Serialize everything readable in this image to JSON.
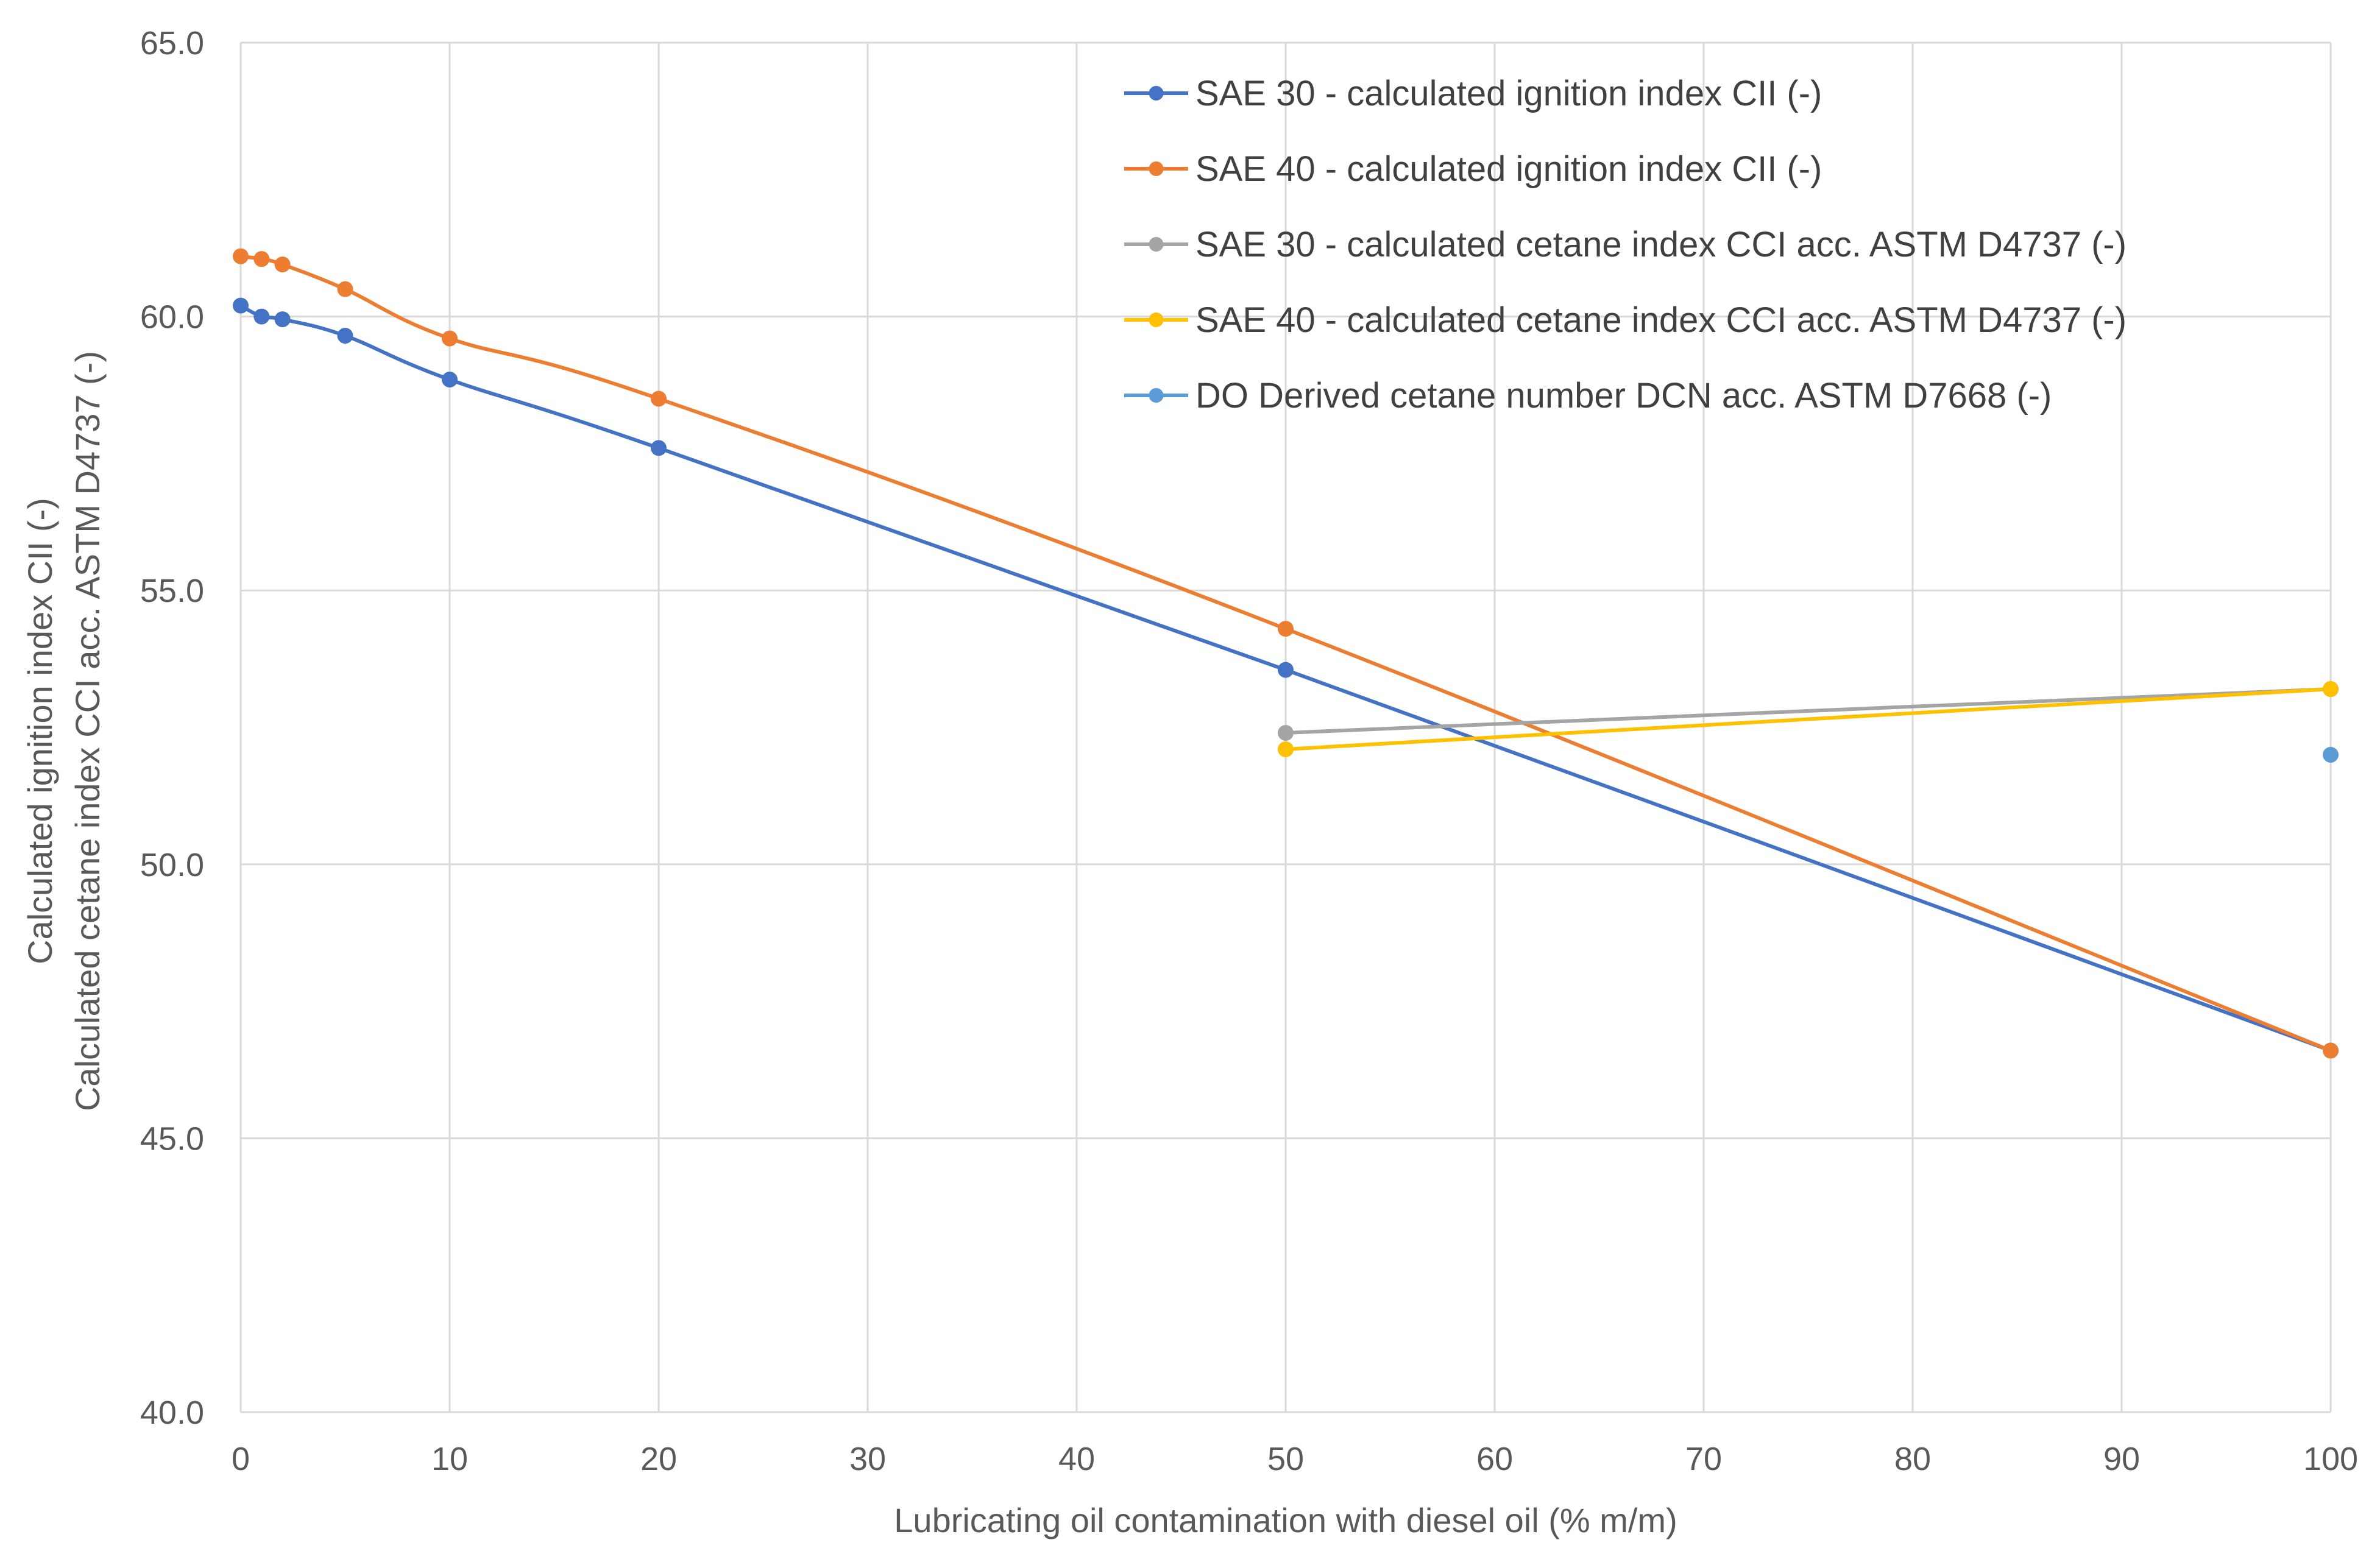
{
  "chart_data": {
    "type": "line",
    "title": "",
    "xlabel": "Lubricating oil contamination with diesel oil (% m/m)",
    "ylabel_lines": [
      "Calculated ignition index CII (-)",
      "Calculated cetane index CCI acc. ASTM D4737 (-)"
    ],
    "xlim": [
      0,
      100
    ],
    "ylim": [
      40,
      65
    ],
    "x_ticks": [
      "0",
      "10",
      "20",
      "30",
      "40",
      "50",
      "60",
      "70",
      "80",
      "90",
      "100"
    ],
    "x_tick_values": [
      0,
      10,
      20,
      30,
      40,
      50,
      60,
      70,
      80,
      90,
      100
    ],
    "y_ticks": [
      "40.0",
      "45.0",
      "50.0",
      "55.0",
      "60.0",
      "65.0"
    ],
    "y_tick_values": [
      40,
      45,
      50,
      55,
      60,
      65
    ],
    "grid": true,
    "legend_position": "top-right",
    "series": [
      {
        "name": "SAE 30 - calculated ignition index CII (-)",
        "color": "#4472C4",
        "x": [
          0,
          1,
          2,
          5,
          10,
          20,
          50,
          100
        ],
        "y": [
          60.2,
          60.0,
          59.95,
          59.65,
          58.85,
          57.6,
          53.55,
          46.6
        ]
      },
      {
        "name": "SAE 40 - calculated ignition index CII (-)",
        "color": "#ED7D31",
        "x": [
          0,
          1,
          2,
          5,
          10,
          20,
          50,
          100
        ],
        "y": [
          61.1,
          61.05,
          60.95,
          60.5,
          59.6,
          58.5,
          54.3,
          46.6
        ]
      },
      {
        "name": "SAE 30 - calculated cetane index CCI acc. ASTM D4737 (-)",
        "color": "#A5A5A5",
        "x": [
          50,
          100
        ],
        "y": [
          52.4,
          53.2
        ]
      },
      {
        "name": "SAE 40 - calculated cetane index CCI acc. ASTM D4737 (-)",
        "color": "#FFC000",
        "x": [
          50,
          100
        ],
        "y": [
          52.1,
          53.2
        ]
      },
      {
        "name": "DO Derived cetane number DCN acc. ASTM D7668 (-)",
        "color": "#5B9BD5",
        "x": [
          100
        ],
        "y": [
          52.0
        ]
      }
    ]
  }
}
